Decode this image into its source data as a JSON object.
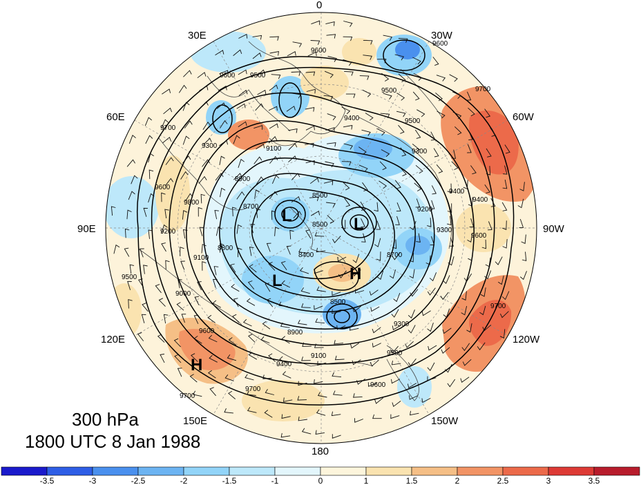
{
  "title": {
    "level": "300 hPa",
    "time": "1800 UTC 8 Jan 1988"
  },
  "map": {
    "projection": "polar stereographic (north pole)",
    "longitude_labels": [
      "0",
      "30W",
      "60W",
      "90W",
      "120W",
      "150W",
      "180",
      "150E",
      "120E",
      "90E",
      "60E",
      "30E"
    ],
    "contour_labels": [
      "9600",
      "9500",
      "9700",
      "9600",
      "9500",
      "9400",
      "9700",
      "9300",
      "9100",
      "9600",
      "9200",
      "9300",
      "8900",
      "9500",
      "8500",
      "9400",
      "9200",
      "9300",
      "9400",
      "9600",
      "9800",
      "8700",
      "8800",
      "8500",
      "8400",
      "8700",
      "9100",
      "8500",
      "9000",
      "8900",
      "9100",
      "9400",
      "9500",
      "9300",
      "9600",
      "9700",
      "9700",
      "9600",
      "9700",
      "9600",
      "9500"
    ],
    "pressure_systems": [
      {
        "label": "L"
      },
      {
        "label": "L"
      },
      {
        "label": "L"
      },
      {
        "label": "H"
      },
      {
        "label": "H"
      }
    ],
    "colors": {
      "contour": "#000000",
      "barb": "#000000",
      "coast": "#333333"
    }
  },
  "colorbar": {
    "tick_labels": [
      "-3.5",
      "-3",
      "-2.5",
      "-2",
      "-1.5",
      "-1",
      "0",
      "1",
      "1.5",
      "2",
      "2.5",
      "3",
      "3.5"
    ],
    "colors": [
      "#1a1acc",
      "#2e5ee6",
      "#4a90ee",
      "#6cb4f2",
      "#92d4f8",
      "#bde8fa",
      "#e3f6fc",
      "#fdf5dc",
      "#fae3b0",
      "#f5bf86",
      "#f29465",
      "#ec6a4a",
      "#dd3a35",
      "#b81c2c"
    ]
  }
}
